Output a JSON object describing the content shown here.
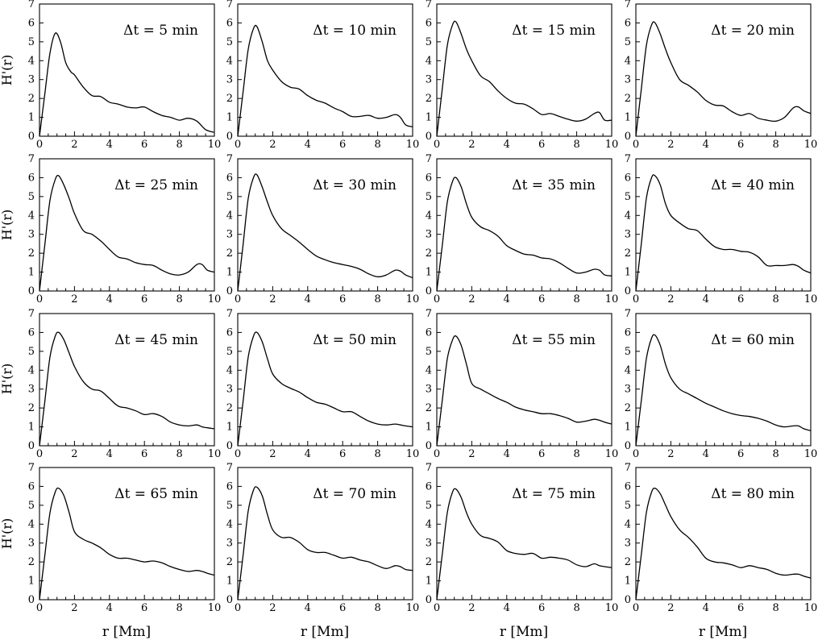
{
  "figure": {
    "y_axis_label": "H'(r)",
    "x_axis_label": "r [Mm]"
  },
  "chart_data": [
    {
      "type": "line",
      "annotation": "Δt = 5 min",
      "xlabel": "r [Mm]",
      "ylabel": "H'(r)",
      "xlim": [
        0,
        10
      ],
      "ylim": [
        0,
        7
      ],
      "x_ticks": [
        0,
        2,
        4,
        6,
        8,
        10
      ],
      "y_ticks": [
        0,
        1,
        2,
        3,
        4,
        5,
        6,
        7
      ],
      "grid": false,
      "x": [
        0,
        0.3,
        0.6,
        0.9,
        1.2,
        1.5,
        1.8,
        2,
        2.5,
        3,
        3.5,
        4,
        4.5,
        5,
        5.5,
        6,
        6.5,
        7,
        7.5,
        8,
        8.5,
        9,
        9.5,
        10
      ],
      "y": [
        0,
        2.2,
        4.4,
        5.45,
        5,
        3.9,
        3.4,
        3.25,
        2.6,
        2.15,
        2.1,
        1.8,
        1.7,
        1.55,
        1.5,
        1.55,
        1.3,
        1.1,
        1.0,
        0.85,
        0.95,
        0.8,
        0.35,
        0.2
      ]
    },
    {
      "type": "line",
      "annotation": "Δt = 10 min",
      "xlabel": "r [Mm]",
      "ylabel": "H'(r)",
      "xlim": [
        0,
        10
      ],
      "ylim": [
        0,
        7
      ],
      "x_ticks": [
        0,
        2,
        4,
        6,
        8,
        10
      ],
      "y_ticks": [
        0,
        1,
        2,
        3,
        4,
        5,
        6,
        7
      ],
      "grid": false,
      "x": [
        0,
        0.3,
        0.6,
        0.9,
        1.1,
        1.4,
        1.7,
        2,
        2.5,
        3,
        3.5,
        4,
        4.5,
        5,
        5.5,
        6,
        6.5,
        7,
        7.5,
        8,
        8.5,
        9,
        9.3,
        9.6,
        10
      ],
      "y": [
        0,
        2.3,
        4.6,
        5.7,
        5.8,
        5.0,
        4.0,
        3.5,
        2.9,
        2.6,
        2.5,
        2.15,
        1.9,
        1.75,
        1.5,
        1.3,
        1.05,
        1.05,
        1.1,
        0.95,
        1.0,
        1.15,
        1.0,
        0.6,
        0.5
      ]
    },
    {
      "type": "line",
      "annotation": "Δt = 15 min",
      "xlabel": "r [Mm]",
      "ylabel": "H'(r)",
      "xlim": [
        0,
        10
      ],
      "ylim": [
        0,
        7
      ],
      "x_ticks": [
        0,
        2,
        4,
        6,
        8,
        10
      ],
      "y_ticks": [
        0,
        1,
        2,
        3,
        4,
        5,
        6,
        7
      ],
      "grid": false,
      "x": [
        0,
        0.3,
        0.6,
        0.9,
        1.1,
        1.4,
        1.7,
        2,
        2.5,
        3,
        3.5,
        4,
        4.5,
        5,
        5.5,
        6,
        6.5,
        7,
        7.5,
        8,
        8.5,
        9,
        9.3,
        9.6,
        10
      ],
      "y": [
        0,
        2.4,
        4.8,
        5.9,
        6.05,
        5.4,
        4.6,
        4.0,
        3.2,
        2.9,
        2.4,
        2.0,
        1.75,
        1.7,
        1.45,
        1.15,
        1.2,
        1.05,
        0.9,
        0.8,
        0.9,
        1.2,
        1.25,
        0.85,
        0.85
      ]
    },
    {
      "type": "line",
      "annotation": "Δt = 20 min",
      "xlabel": "r [Mm]",
      "ylabel": "H'(r)",
      "xlim": [
        0,
        10
      ],
      "ylim": [
        0,
        7
      ],
      "x_ticks": [
        0,
        2,
        4,
        6,
        8,
        10
      ],
      "y_ticks": [
        0,
        1,
        2,
        3,
        4,
        5,
        6,
        7
      ],
      "grid": false,
      "x": [
        0,
        0.3,
        0.6,
        0.9,
        1.1,
        1.4,
        1.7,
        2,
        2.5,
        3,
        3.5,
        4,
        4.5,
        5,
        5.5,
        6,
        6.5,
        7,
        7.5,
        8,
        8.5,
        9,
        9.3,
        9.6,
        10
      ],
      "y": [
        0,
        2.4,
        4.8,
        5.9,
        6.0,
        5.4,
        4.6,
        3.9,
        3.0,
        2.7,
        2.35,
        1.9,
        1.65,
        1.6,
        1.3,
        1.1,
        1.2,
        0.95,
        0.85,
        0.8,
        1.0,
        1.5,
        1.55,
        1.35,
        1.2
      ]
    },
    {
      "type": "line",
      "annotation": "Δt = 25 min",
      "xlabel": "r [Mm]",
      "ylabel": "H'(r)",
      "xlim": [
        0,
        10
      ],
      "ylim": [
        0,
        7
      ],
      "x_ticks": [
        0,
        2,
        4,
        6,
        8,
        10
      ],
      "y_ticks": [
        0,
        1,
        2,
        3,
        4,
        5,
        6,
        7
      ],
      "grid": false,
      "x": [
        0,
        0.3,
        0.6,
        0.9,
        1.1,
        1.4,
        1.7,
        2,
        2.5,
        3,
        3.5,
        4,
        4.5,
        5,
        5.5,
        6,
        6.5,
        7,
        7.5,
        8,
        8.5,
        9,
        9.3,
        9.6,
        10
      ],
      "y": [
        0,
        2.4,
        4.8,
        5.9,
        6.1,
        5.6,
        4.9,
        4.1,
        3.2,
        3.0,
        2.65,
        2.2,
        1.8,
        1.7,
        1.5,
        1.4,
        1.35,
        1.1,
        0.9,
        0.85,
        1.0,
        1.4,
        1.4,
        1.1,
        1.0
      ]
    },
    {
      "type": "line",
      "annotation": "Δt = 30 min",
      "xlabel": "r [Mm]",
      "ylabel": "H'(r)",
      "xlim": [
        0,
        10
      ],
      "ylim": [
        0,
        7
      ],
      "x_ticks": [
        0,
        2,
        4,
        6,
        8,
        10
      ],
      "y_ticks": [
        0,
        1,
        2,
        3,
        4,
        5,
        6,
        7
      ],
      "grid": false,
      "x": [
        0,
        0.3,
        0.6,
        0.9,
        1.1,
        1.4,
        1.7,
        2,
        2.5,
        3,
        3.5,
        4,
        4.5,
        5,
        5.5,
        6,
        6.5,
        7,
        7.5,
        8,
        8.5,
        9,
        9.3,
        9.6,
        10
      ],
      "y": [
        0,
        2.4,
        4.9,
        6.0,
        6.15,
        5.5,
        4.7,
        4.0,
        3.3,
        2.95,
        2.6,
        2.2,
        1.85,
        1.65,
        1.5,
        1.4,
        1.3,
        1.15,
        0.9,
        0.75,
        0.85,
        1.1,
        1.05,
        0.85,
        0.7
      ]
    },
    {
      "type": "line",
      "annotation": "Δt = 35 min",
      "xlabel": "r [Mm]",
      "ylabel": "H'(r)",
      "xlim": [
        0,
        10
      ],
      "ylim": [
        0,
        7
      ],
      "x_ticks": [
        0,
        2,
        4,
        6,
        8,
        10
      ],
      "y_ticks": [
        0,
        1,
        2,
        3,
        4,
        5,
        6,
        7
      ],
      "grid": false,
      "x": [
        0,
        0.3,
        0.6,
        0.9,
        1.1,
        1.4,
        1.7,
        2,
        2.5,
        3,
        3.5,
        4,
        4.5,
        5,
        5.5,
        6,
        6.5,
        7,
        7.5,
        8,
        8.5,
        9,
        9.3,
        9.6,
        10
      ],
      "y": [
        0,
        2.3,
        4.7,
        5.8,
        6.0,
        5.5,
        4.6,
        3.9,
        3.4,
        3.2,
        2.9,
        2.4,
        2.15,
        1.95,
        1.9,
        1.75,
        1.7,
        1.5,
        1.2,
        0.95,
        1.0,
        1.15,
        1.1,
        0.85,
        0.8
      ]
    },
    {
      "type": "line",
      "annotation": "Δt = 40 min",
      "xlabel": "r [Mm]",
      "ylabel": "H'(r)",
      "xlim": [
        0,
        10
      ],
      "ylim": [
        0,
        7
      ],
      "x_ticks": [
        0,
        2,
        4,
        6,
        8,
        10
      ],
      "y_ticks": [
        0,
        1,
        2,
        3,
        4,
        5,
        6,
        7
      ],
      "grid": false,
      "x": [
        0,
        0.3,
        0.6,
        0.9,
        1.1,
        1.4,
        1.7,
        2,
        2.5,
        3,
        3.5,
        4,
        4.5,
        5,
        5.5,
        6,
        6.5,
        7,
        7.5,
        8,
        8.5,
        9,
        9.3,
        9.6,
        10
      ],
      "y": [
        0,
        2.4,
        4.9,
        6.0,
        6.1,
        5.6,
        4.6,
        4.0,
        3.6,
        3.3,
        3.2,
        2.75,
        2.35,
        2.2,
        2.2,
        2.1,
        2.05,
        1.8,
        1.35,
        1.35,
        1.35,
        1.4,
        1.3,
        1.1,
        0.95
      ]
    },
    {
      "type": "line",
      "annotation": "Δt = 45 min",
      "xlabel": "r [Mm]",
      "ylabel": "H'(r)",
      "xlim": [
        0,
        10
      ],
      "ylim": [
        0,
        7
      ],
      "x_ticks": [
        0,
        2,
        4,
        6,
        8,
        10
      ],
      "y_ticks": [
        0,
        1,
        2,
        3,
        4,
        5,
        6,
        7
      ],
      "grid": false,
      "x": [
        0,
        0.3,
        0.6,
        0.9,
        1.1,
        1.4,
        1.7,
        2,
        2.5,
        3,
        3.5,
        4,
        4.5,
        5,
        5.5,
        6,
        6.5,
        7,
        7.5,
        8,
        8.5,
        9,
        9.3,
        9.6,
        10
      ],
      "y": [
        0,
        2.3,
        4.7,
        5.8,
        6.0,
        5.6,
        4.9,
        4.2,
        3.4,
        3.0,
        2.9,
        2.5,
        2.1,
        2.0,
        1.85,
        1.65,
        1.7,
        1.55,
        1.25,
        1.1,
        1.05,
        1.1,
        1.0,
        0.95,
        0.9
      ]
    },
    {
      "type": "line",
      "annotation": "Δt = 50 min",
      "xlabel": "r [Mm]",
      "ylabel": "H'(r)",
      "xlim": [
        0,
        10
      ],
      "ylim": [
        0,
        7
      ],
      "x_ticks": [
        0,
        2,
        4,
        6,
        8,
        10
      ],
      "y_ticks": [
        0,
        1,
        2,
        3,
        4,
        5,
        6,
        7
      ],
      "grid": false,
      "x": [
        0,
        0.3,
        0.6,
        0.9,
        1.1,
        1.4,
        1.7,
        2,
        2.5,
        3,
        3.5,
        4,
        4.5,
        5,
        5.5,
        6,
        6.5,
        7,
        7.5,
        8,
        8.5,
        9,
        9.3,
        9.6,
        10
      ],
      "y": [
        0,
        2.3,
        4.7,
        5.8,
        6.0,
        5.5,
        4.6,
        3.8,
        3.3,
        3.05,
        2.85,
        2.55,
        2.3,
        2.2,
        2.0,
        1.8,
        1.8,
        1.55,
        1.3,
        1.15,
        1.1,
        1.15,
        1.1,
        1.05,
        1.0
      ]
    },
    {
      "type": "line",
      "annotation": "Δt = 55 min",
      "xlabel": "r [Mm]",
      "ylabel": "H'(r)",
      "xlim": [
        0,
        10
      ],
      "ylim": [
        0,
        7
      ],
      "x_ticks": [
        0,
        2,
        4,
        6,
        8,
        10
      ],
      "y_ticks": [
        0,
        1,
        2,
        3,
        4,
        5,
        6,
        7
      ],
      "grid": false,
      "x": [
        0,
        0.3,
        0.6,
        0.9,
        1.1,
        1.4,
        1.7,
        2,
        2.5,
        3,
        3.5,
        4,
        4.5,
        5,
        5.5,
        6,
        6.5,
        7,
        7.5,
        8,
        8.5,
        9,
        9.3,
        9.6,
        10
      ],
      "y": [
        0,
        2.3,
        4.6,
        5.6,
        5.8,
        5.3,
        4.3,
        3.3,
        3.0,
        2.75,
        2.5,
        2.3,
        2.05,
        1.9,
        1.8,
        1.7,
        1.7,
        1.6,
        1.45,
        1.25,
        1.3,
        1.4,
        1.35,
        1.25,
        1.15
      ]
    },
    {
      "type": "line",
      "annotation": "Δt = 60 min",
      "xlabel": "r [Mm]",
      "ylabel": "H'(r)",
      "xlim": [
        0,
        10
      ],
      "ylim": [
        0,
        7
      ],
      "x_ticks": [
        0,
        2,
        4,
        6,
        8,
        10
      ],
      "y_ticks": [
        0,
        1,
        2,
        3,
        4,
        5,
        6,
        7
      ],
      "grid": false,
      "x": [
        0,
        0.3,
        0.6,
        0.9,
        1.1,
        1.4,
        1.7,
        2,
        2.5,
        3,
        3.5,
        4,
        4.5,
        5,
        5.5,
        6,
        6.5,
        7,
        7.5,
        8,
        8.5,
        9,
        9.3,
        9.6,
        10
      ],
      "y": [
        0,
        2.3,
        4.6,
        5.7,
        5.85,
        5.3,
        4.3,
        3.6,
        3.0,
        2.75,
        2.5,
        2.25,
        2.05,
        1.85,
        1.7,
        1.6,
        1.55,
        1.45,
        1.3,
        1.1,
        1.0,
        1.05,
        1.05,
        0.9,
        0.8
      ]
    },
    {
      "type": "line",
      "annotation": "Δt = 65 min",
      "xlabel": "r [Mm]",
      "ylabel": "H'(r)",
      "xlim": [
        0,
        10
      ],
      "ylim": [
        0,
        7
      ],
      "x_ticks": [
        0,
        2,
        4,
        6,
        8,
        10
      ],
      "y_ticks": [
        0,
        1,
        2,
        3,
        4,
        5,
        6,
        7
      ],
      "grid": false,
      "x": [
        0,
        0.3,
        0.6,
        0.9,
        1.1,
        1.4,
        1.7,
        2,
        2.5,
        3,
        3.5,
        4,
        4.5,
        5,
        5.5,
        6,
        6.5,
        7,
        7.5,
        8,
        8.5,
        9,
        9.3,
        9.6,
        10
      ],
      "y": [
        0,
        2.3,
        4.6,
        5.7,
        5.9,
        5.5,
        4.6,
        3.6,
        3.2,
        3.0,
        2.75,
        2.4,
        2.2,
        2.2,
        2.1,
        2.0,
        2.05,
        1.95,
        1.75,
        1.6,
        1.5,
        1.55,
        1.5,
        1.4,
        1.3
      ]
    },
    {
      "type": "line",
      "annotation": "Δt = 70 min",
      "xlabel": "r [Mm]",
      "ylabel": "H'(r)",
      "xlim": [
        0,
        10
      ],
      "ylim": [
        0,
        7
      ],
      "x_ticks": [
        0,
        2,
        4,
        6,
        8,
        10
      ],
      "y_ticks": [
        0,
        1,
        2,
        3,
        4,
        5,
        6,
        7
      ],
      "grid": false,
      "x": [
        0,
        0.3,
        0.6,
        0.9,
        1.1,
        1.4,
        1.7,
        2,
        2.5,
        3,
        3.5,
        4,
        4.5,
        5,
        5.5,
        6,
        6.5,
        7,
        7.5,
        8,
        8.5,
        9,
        9.3,
        9.6,
        10
      ],
      "y": [
        0,
        2.3,
        4.7,
        5.8,
        5.95,
        5.5,
        4.5,
        3.7,
        3.3,
        3.3,
        3.05,
        2.65,
        2.5,
        2.5,
        2.35,
        2.2,
        2.25,
        2.1,
        2.0,
        1.8,
        1.65,
        1.8,
        1.75,
        1.6,
        1.55
      ]
    },
    {
      "type": "line",
      "annotation": "Δt = 75 min",
      "xlabel": "r [Mm]",
      "ylabel": "H'(r)",
      "xlim": [
        0,
        10
      ],
      "ylim": [
        0,
        7
      ],
      "x_ticks": [
        0,
        2,
        4,
        6,
        8,
        10
      ],
      "y_ticks": [
        0,
        1,
        2,
        3,
        4,
        5,
        6,
        7
      ],
      "grid": false,
      "x": [
        0,
        0.3,
        0.6,
        0.9,
        1.1,
        1.4,
        1.7,
        2,
        2.5,
        3,
        3.5,
        4,
        4.5,
        5,
        5.5,
        6,
        6.5,
        7,
        7.5,
        8,
        8.5,
        9,
        9.3,
        9.6,
        10
      ],
      "y": [
        0,
        2.3,
        4.6,
        5.7,
        5.85,
        5.4,
        4.6,
        4.0,
        3.4,
        3.25,
        3.05,
        2.6,
        2.45,
        2.4,
        2.45,
        2.2,
        2.25,
        2.2,
        2.1,
        1.85,
        1.75,
        1.9,
        1.8,
        1.75,
        1.7
      ]
    },
    {
      "type": "line",
      "annotation": "Δt = 80 min",
      "xlabel": "r [Mm]",
      "ylabel": "H'(r)",
      "xlim": [
        0,
        10
      ],
      "ylim": [
        0,
        7
      ],
      "x_ticks": [
        0,
        2,
        4,
        6,
        8,
        10
      ],
      "y_ticks": [
        0,
        1,
        2,
        3,
        4,
        5,
        6,
        7
      ],
      "grid": false,
      "x": [
        0,
        0.3,
        0.6,
        0.9,
        1.1,
        1.4,
        1.7,
        2,
        2.5,
        3,
        3.5,
        4,
        4.5,
        5,
        5.5,
        6,
        6.5,
        7,
        7.5,
        8,
        8.5,
        9,
        9.3,
        9.6,
        10
      ],
      "y": [
        0,
        2.3,
        4.6,
        5.7,
        5.9,
        5.6,
        5.0,
        4.4,
        3.7,
        3.3,
        2.8,
        2.2,
        2.0,
        1.95,
        1.85,
        1.7,
        1.8,
        1.7,
        1.6,
        1.4,
        1.3,
        1.35,
        1.35,
        1.25,
        1.15
      ]
    }
  ]
}
